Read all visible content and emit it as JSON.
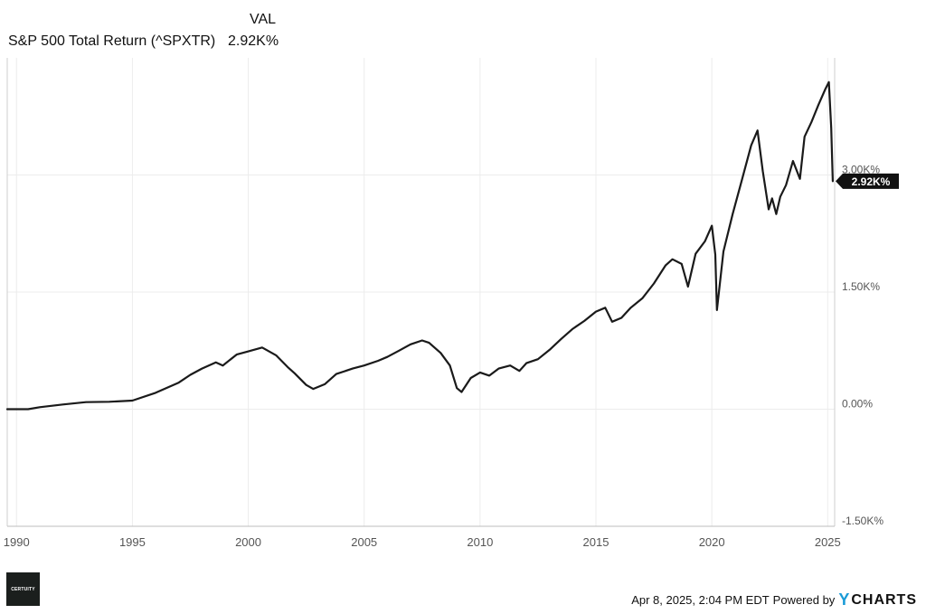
{
  "legend": {
    "column_header": "VAL",
    "series_name": "S&P 500 Total Return (^SPXTR)",
    "series_value": "2.92K%"
  },
  "chart_data": {
    "type": "line",
    "title": "",
    "xlabel": "",
    "ylabel": "",
    "x_ticks": [
      "1990",
      "1995",
      "2000",
      "2005",
      "2010",
      "2015",
      "2020",
      "2025"
    ],
    "y_ticks": [
      "3.00K%",
      "1.50K%",
      "0.00%",
      "-1.50K%"
    ],
    "xlim": [
      1989.6,
      2025.3
    ],
    "ylim": [
      -1500,
      4500
    ],
    "grid": true,
    "last_value_label": "2.92K%",
    "series": [
      {
        "name": "S&P 500 Total Return (^SPXTR)",
        "color": "#1a1a1a",
        "x": [
          1989.6,
          1990.5,
          1991.0,
          1992.0,
          1993.0,
          1994.0,
          1995.0,
          1996.0,
          1997.0,
          1997.5,
          1998.0,
          1998.6,
          1998.9,
          1999.5,
          2000.0,
          2000.6,
          2001.2,
          2001.7,
          2002.0,
          2002.5,
          2002.8,
          2003.3,
          2003.8,
          2004.5,
          2005.0,
          2005.6,
          2006.0,
          2006.5,
          2007.0,
          2007.5,
          2007.8,
          2008.3,
          2008.7,
          2009.0,
          2009.2,
          2009.6,
          2010.0,
          2010.4,
          2010.8,
          2011.3,
          2011.7,
          2012.0,
          2012.5,
          2013.0,
          2013.5,
          2014.0,
          2014.5,
          2015.0,
          2015.4,
          2015.7,
          2016.1,
          2016.5,
          2017.0,
          2017.5,
          2018.0,
          2018.3,
          2018.7,
          2018.97,
          2019.3,
          2019.7,
          2020.0,
          2020.15,
          2020.22,
          2020.5,
          2020.9,
          2021.3,
          2021.7,
          2021.97,
          2022.2,
          2022.45,
          2022.6,
          2022.78,
          2022.95,
          2023.2,
          2023.5,
          2023.8,
          2024.0,
          2024.3,
          2024.6,
          2024.9,
          2025.05,
          2025.15,
          2025.22
        ],
        "values": [
          0,
          0,
          25,
          60,
          90,
          95,
          110,
          210,
          340,
          440,
          520,
          600,
          560,
          700,
          740,
          790,
          690,
          540,
          460,
          310,
          260,
          320,
          450,
          520,
          560,
          620,
          670,
          750,
          830,
          880,
          850,
          720,
          560,
          270,
          220,
          400,
          470,
          430,
          520,
          560,
          490,
          590,
          640,
          760,
          900,
          1030,
          1130,
          1250,
          1300,
          1120,
          1170,
          1300,
          1420,
          1610,
          1840,
          1920,
          1860,
          1570,
          1990,
          2150,
          2350,
          1980,
          1270,
          2020,
          2500,
          2940,
          3380,
          3570,
          3050,
          2560,
          2700,
          2500,
          2720,
          2870,
          3180,
          2950,
          3490,
          3680,
          3900,
          4100,
          4190,
          3600,
          2920
        ]
      }
    ]
  },
  "footer": {
    "timestamp": "Apr 8, 2025, 2:04 PM EDT",
    "powered_by": "Powered by",
    "brand_y": "Y",
    "brand_rest": "CHARTS",
    "logo_text": "CERTUITY"
  }
}
